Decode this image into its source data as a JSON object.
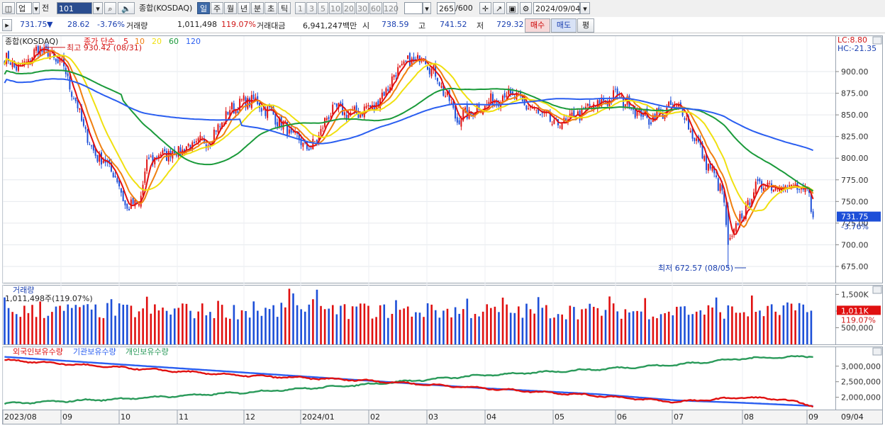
{
  "toolbar": {
    "market": "업",
    "prev": "전",
    "code": "101",
    "name": "종합(KOSDAQ)",
    "periods": [
      "일",
      "주",
      "월",
      "년",
      "분",
      "초",
      "틱"
    ],
    "selected_period": "일",
    "intervals": [
      "1",
      "3",
      "5",
      "10",
      "20",
      "30",
      "60",
      "120"
    ],
    "count": "265",
    "count_max": "/600",
    "date": "2024/09/04"
  },
  "info": {
    "price": "731.75",
    "change_arrow": "▼",
    "change": "28.62",
    "change_pct": "-3.76%",
    "volume_label": "거래량",
    "volume": "1,011,498",
    "volume_pct": "119.07%",
    "amount_label": "거래대금",
    "amount": "6,941,247백만",
    "open_label": "시",
    "open": "738.59",
    "high_label": "고",
    "high": "741.52",
    "low_label": "저",
    "low": "729.32",
    "buy_label": "매수",
    "sell_label": "매도",
    "eval_label": "평"
  },
  "price_panel": {
    "name": "종합(KOSDAQ)",
    "ma_label": "종가 단순",
    "ma_periods": [
      "5",
      "10",
      "20",
      "60",
      "120"
    ],
    "high_annot": "최고 930.42 (08/31)",
    "low_annot": "최저 672.57 (08/05)",
    "lc": "LC:8.80",
    "hc": "HC:-21.35",
    "y_ticks": [
      "900.00",
      "875.00",
      "850.00",
      "825.00",
      "800.00",
      "775.00",
      "750.00",
      "725.00",
      "700.00",
      "675.00"
    ],
    "current_price": "731.75",
    "current_pct": "-3.76%"
  },
  "volume_panel": {
    "title": "거래량",
    "value_text": "1,011,498주(119.07%)",
    "y_ticks": [
      "1,500K",
      "1,000K",
      "500,000"
    ],
    "badge": "1,011K",
    "badge_pct": "119.07%"
  },
  "holdings_panel": {
    "legend": [
      "외국인보유수량",
      "기관보유수량",
      "개인보유수량"
    ],
    "y_ticks": [
      "3,000,000",
      "2,500,000",
      "2,000,000"
    ]
  },
  "x_axis": {
    "labels": [
      "2023/08",
      "09",
      "10",
      "11",
      "12",
      "2024/01",
      "02",
      "03",
      "04",
      "05",
      "06",
      "07",
      "08",
      "09"
    ],
    "right_label": "09/04"
  },
  "colors": {
    "up": "#e01010",
    "down": "#1d4fd8",
    "ma5": "#e01010",
    "ma10": "#f08010",
    "ma20": "#f0e010",
    "ma60": "#1a9a3a",
    "ma120": "#2a5ef0",
    "foreign": "#e01010",
    "institution": "#2a5ef0",
    "individual": "#2a9a5a"
  },
  "chart_data": {
    "type": "candlestick",
    "title": "종합(KOSDAQ)",
    "ylim": [
      660,
      940
    ],
    "high": {
      "value": 930.42,
      "date": "08/31"
    },
    "low": {
      "value": 672.57,
      "date": "08/05"
    },
    "months": [
      "2023/08",
      "09",
      "10",
      "11",
      "12",
      "2024/01",
      "02",
      "03",
      "04",
      "05",
      "06",
      "07",
      "08",
      "09"
    ],
    "close_keypoints": [
      [
        0,
        915
      ],
      [
        8,
        903
      ],
      [
        18,
        928
      ],
      [
        30,
        905
      ],
      [
        44,
        810
      ],
      [
        55,
        785
      ],
      [
        62,
        742
      ],
      [
        68,
        748
      ],
      [
        73,
        800
      ],
      [
        90,
        810
      ],
      [
        104,
        822
      ],
      [
        115,
        858
      ],
      [
        125,
        868
      ],
      [
        136,
        850
      ],
      [
        146,
        825
      ],
      [
        155,
        810
      ],
      [
        166,
        858
      ],
      [
        176,
        850
      ],
      [
        188,
        862
      ],
      [
        200,
        905
      ],
      [
        212,
        918
      ],
      [
        220,
        888
      ],
      [
        229,
        845
      ],
      [
        240,
        858
      ],
      [
        255,
        875
      ],
      [
        268,
        855
      ],
      [
        280,
        838
      ],
      [
        296,
        858
      ],
      [
        310,
        873
      ],
      [
        325,
        845
      ],
      [
        341,
        862
      ],
      [
        355,
        795
      ],
      [
        363,
        763
      ],
      [
        366,
        700
      ],
      [
        371,
        725
      ],
      [
        381,
        770
      ],
      [
        395,
        768
      ],
      [
        407,
        760
      ],
      [
        408,
        738
      ],
      [
        409,
        731.75
      ]
    ],
    "ma_periods": [
      5,
      10,
      20,
      60,
      120
    ],
    "volume_last": 1011498,
    "volume_pct": 119.07,
    "holdings_keypoints": {
      "foreign": [
        [
          0,
          3.2
        ],
        [
          60,
          2.95
        ],
        [
          120,
          2.7
        ],
        [
          180,
          2.55
        ],
        [
          240,
          2.3
        ],
        [
          300,
          2.05
        ],
        [
          340,
          1.85
        ],
        [
          374,
          2.0
        ],
        [
          395,
          1.92
        ],
        [
          409,
          1.72
        ]
      ],
      "institution": [
        [
          0,
          3.3
        ],
        [
          60,
          3.05
        ],
        [
          120,
          2.8
        ],
        [
          180,
          2.55
        ],
        [
          240,
          2.3
        ],
        [
          300,
          2.1
        ],
        [
          340,
          1.9
        ],
        [
          374,
          1.82
        ],
        [
          409,
          1.72
        ]
      ],
      "individual": [
        [
          0,
          1.8
        ],
        [
          60,
          1.95
        ],
        [
          120,
          2.15
        ],
        [
          180,
          2.4
        ],
        [
          240,
          2.7
        ],
        [
          300,
          2.9
        ],
        [
          340,
          3.05
        ],
        [
          374,
          3.25
        ],
        [
          409,
          3.32
        ]
      ]
    }
  }
}
